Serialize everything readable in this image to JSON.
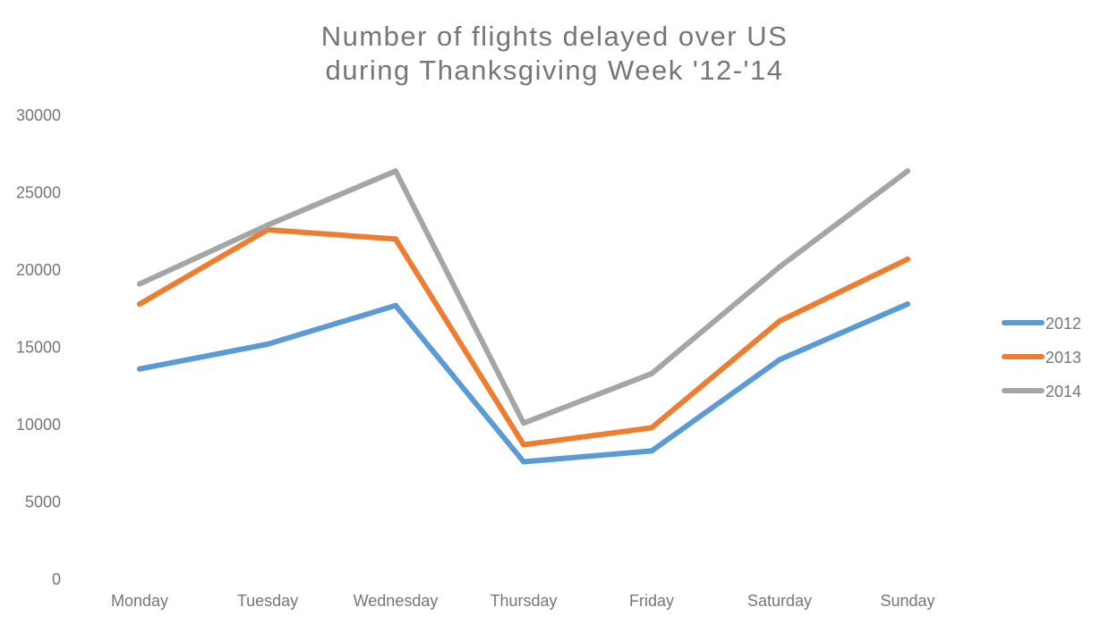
{
  "chart_data": {
    "type": "line",
    "title_lines": [
      "Number of flights delayed over US",
      "during Thanksgiving Week '12-'14"
    ],
    "categories": [
      "Monday",
      "Tuesday",
      "Wednesday",
      "Thursday",
      "Friday",
      "Saturday",
      "Sunday"
    ],
    "yticks": [
      "0",
      "5000",
      "10000",
      "15000",
      "20000",
      "25000",
      "30000"
    ],
    "ylim": [
      0,
      30000
    ],
    "grid": false,
    "legend_position": "right",
    "series": [
      {
        "name": "2012",
        "color": "#5B9BD5",
        "values": [
          13600,
          15200,
          17700,
          7600,
          8300,
          14200,
          17800
        ]
      },
      {
        "name": "2013",
        "color": "#ED7D31",
        "values": [
          17800,
          22600,
          22000,
          8700,
          9800,
          16700,
          20700
        ]
      },
      {
        "name": "2014",
        "color": "#A5A5A5",
        "values": [
          19100,
          22900,
          26400,
          10100,
          13300,
          20200,
          26400
        ]
      }
    ]
  }
}
